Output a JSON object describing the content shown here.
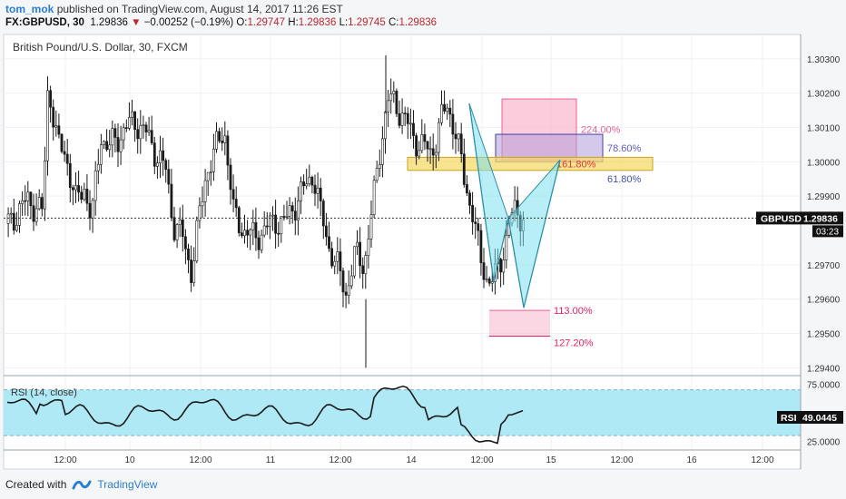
{
  "header": {
    "author": "tom_mok",
    "published_text": "published on TradingView.com, August 14, 2017 11:26 EST",
    "symbol": "FX:GBPUSD, 30",
    "last": "1.29836",
    "change": "−0.00252 (−0.19%)",
    "o_label": "O:",
    "o_value": "1.29747",
    "h_label": "H:",
    "h_value": "1.29836",
    "l_label": "L:",
    "l_value": "1.29745",
    "c_label": "C:",
    "c_value": "1.29836"
  },
  "footer": {
    "created_with": "Created with",
    "brand": "TradingView"
  },
  "chart_data": {
    "type": "candlestick",
    "title": "British Pound/U.S. Dollar, 30, FXCM",
    "ylim": [
      1.29385,
      1.30355
    ],
    "y_ticks": [
      "1.30300",
      "1.30200",
      "1.30100",
      "1.30000",
      "1.29900",
      "1.29700",
      "1.29600",
      "1.29500",
      "1.29400"
    ],
    "x_ticks": [
      "12:00",
      "10",
      "12:00",
      "11",
      "12:00",
      "14",
      "12:00",
      "15",
      "12:00",
      "16",
      "12:00"
    ],
    "price_label": {
      "name": "GBPUSD",
      "value": "1.29836",
      "countdown": "03:23",
      "price": 1.29836
    },
    "harmonic_levels": [
      {
        "label": "224.00%",
        "price_top": 1.30183,
        "price_bottom": 1.30005,
        "color": "#f06292"
      },
      {
        "label": "78.60%",
        "price_top": 1.3008,
        "price_bottom": 1.3,
        "color": "#5c5cc8"
      },
      {
        "label": "161.80%",
        "price_top": 1.30013,
        "price_bottom": 1.29975,
        "color": "#e53935"
      },
      {
        "label": "61.80%",
        "price_top": 1.29975,
        "price_bottom": 1.29975,
        "color": "#3f51b5"
      },
      {
        "label": "113.00%",
        "price_top": 1.29567,
        "price_bottom": 1.29567,
        "color": "#e91e63"
      },
      {
        "label": "127.20%",
        "price_top": 1.29492,
        "price_bottom": 1.29492,
        "color": "#e91e63"
      }
    ],
    "pattern_points": [
      {
        "t": 405,
        "price": 1.3017
      },
      {
        "t": 432,
        "price": 1.2965
      },
      {
        "t": 448,
        "price": 1.29835
      },
      {
        "t": 465,
        "price": 1.29575
      },
      {
        "t": 505,
        "price": 1.30005
      }
    ],
    "rsi": {
      "label": "RSI (14, close)",
      "value": "49.0445",
      "name": "RSI",
      "ylim": [
        19,
        80
      ],
      "ticks": [
        "75.0000",
        "25.0000"
      ],
      "band": [
        30,
        70
      ]
    },
    "colors": {
      "up": "#ffffff",
      "down": "#1a1a1a",
      "wick": "#1a1a1a",
      "pattern": "#7de0ef",
      "band": "#aee9f5"
    }
  }
}
